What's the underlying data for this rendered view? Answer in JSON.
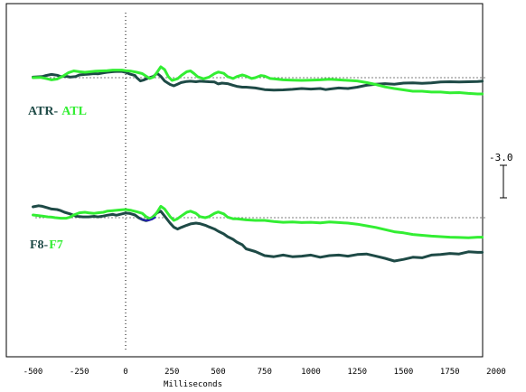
{
  "chart_data": {
    "type": "line",
    "xlabel": "Milliseconds",
    "x_ticks": [
      -500,
      -250,
      0,
      250,
      500,
      750,
      1000,
      1250,
      1500,
      1750,
      2000
    ],
    "xlim": [
      -500,
      1925
    ],
    "grid": false,
    "zero_line": {
      "x": 0,
      "style": "dotted"
    },
    "scale_bar": {
      "label": "-3.0"
    },
    "colors": {
      "dark": "#1e4a46",
      "bright": "#33ee33",
      "blue": "#2222aa"
    },
    "panels": [
      {
        "label_dark": "ATR-",
        "label_bright": "ATL",
        "series": [
          {
            "name": "ATR",
            "color": "#1e4a46",
            "x": [
              -500,
              -450,
              -430,
              -400,
              -370,
              -350,
              -320,
              -300,
              -270,
              -250,
              -220,
              -200,
              -170,
              -150,
              -120,
              -100,
              -70,
              -50,
              -20,
              0,
              20,
              50,
              60,
              80,
              100,
              120,
              150,
              170,
              190,
              210,
              240,
              260,
              280,
              300,
              330,
              350,
              380,
              400,
              430,
              450,
              480,
              500,
              520,
              550,
              580,
              600,
              630,
              650,
              700,
              750,
              800,
              850,
              900,
              950,
              1000,
              1050,
              1080,
              1100,
              1150,
              1200,
              1250,
              1300,
              1350,
              1400,
              1450,
              1500,
              1550,
              1600,
              1650,
              1700,
              1750,
              1800,
              1850,
              1900,
              1925
            ],
            "y": [
              0.2,
              0.4,
              0.8,
              1.2,
              0.9,
              0.4,
              0.5,
              0.2,
              0.4,
              1.0,
              1.2,
              1.3,
              1.5,
              1.4,
              1.8,
              2.0,
              2.2,
              2.3,
              2.3,
              2.0,
              1.4,
              0.8,
              0.0,
              -1.2,
              -0.8,
              -0.2,
              0.5,
              1.6,
              0.5,
              -1.2,
              -2.5,
              -3.0,
              -2.4,
              -1.8,
              -1.4,
              -1.3,
              -1.5,
              -1.3,
              -1.4,
              -1.5,
              -1.6,
              -2.3,
              -2.0,
              -2.2,
              -2.8,
              -3.2,
              -3.5,
              -3.5,
              -3.8,
              -4.4,
              -4.6,
              -4.5,
              -4.3,
              -4.0,
              -4.2,
              -4.0,
              -4.4,
              -4.2,
              -3.8,
              -4.0,
              -3.5,
              -2.8,
              -2.4,
              -2.2,
              -2.4,
              -2.0,
              -1.9,
              -2.1,
              -1.9,
              -1.6,
              -1.5,
              -1.6,
              -1.5,
              -1.4,
              -1.3
            ]
          },
          {
            "name": "ATL",
            "color": "#33ee33",
            "x": [
              -500,
              -460,
              -430,
              -400,
              -370,
              -340,
              -310,
              -280,
              -250,
              -220,
              -190,
              -160,
              -130,
              -100,
              -70,
              -40,
              -20,
              0,
              30,
              60,
              90,
              110,
              130,
              150,
              170,
              190,
              210,
              230,
              250,
              280,
              300,
              330,
              350,
              370,
              390,
              420,
              450,
              480,
              500,
              530,
              550,
              580,
              600,
              630,
              650,
              680,
              700,
              730,
              750,
              780,
              800,
              850,
              900,
              950,
              1000,
              1050,
              1100,
              1150,
              1200,
              1250,
              1300,
              1350,
              1400,
              1450,
              1500,
              1550,
              1600,
              1650,
              1700,
              1750,
              1800,
              1850,
              1900,
              1925
            ],
            "y": [
              0.0,
              0.1,
              -0.3,
              -0.8,
              -0.5,
              0.5,
              1.8,
              2.5,
              2.2,
              2.0,
              2.2,
              2.4,
              2.5,
              2.6,
              2.8,
              2.8,
              2.8,
              2.6,
              2.4,
              2.0,
              1.5,
              0.6,
              -0.3,
              0.2,
              2.0,
              4.0,
              3.0,
              0.4,
              -1.0,
              -0.4,
              0.8,
              2.2,
              2.5,
              1.5,
              0.3,
              -0.4,
              0.2,
              1.5,
              2.1,
              1.6,
              0.4,
              -0.3,
              0.4,
              1.0,
              0.6,
              -0.3,
              0.0,
              0.8,
              0.6,
              -0.3,
              -0.4,
              -0.8,
              -0.9,
              -1.0,
              -0.9,
              -0.8,
              -0.6,
              -0.8,
              -1.0,
              -1.2,
              -1.8,
              -2.5,
              -3.4,
              -4.0,
              -4.5,
              -5.0,
              -5.0,
              -5.3,
              -5.3,
              -5.6,
              -5.5,
              -5.8,
              -6.0,
              -6.0
            ]
          }
        ]
      },
      {
        "label_dark": "F8-",
        "label_bright": "F7",
        "series": [
          {
            "name": "F8",
            "color": "#1e4a46",
            "x": [
              -500,
              -470,
              -450,
              -420,
              -400,
              -370,
              -350,
              -330,
              -300,
              -270,
              -250,
              -230,
              -200,
              -170,
              -150,
              -120,
              -100,
              -70,
              -50,
              -20,
              0,
              20,
              50,
              70,
              90,
              110,
              130,
              150,
              170,
              190,
              210,
              240,
              260,
              280,
              300,
              330,
              350,
              380,
              400,
              430,
              450,
              480,
              500,
              530,
              550,
              580,
              600,
              630,
              650,
              700,
              750,
              800,
              850,
              900,
              950,
              1000,
              1050,
              1100,
              1150,
              1200,
              1250,
              1300,
              1350,
              1400,
              1450,
              1500,
              1550,
              1600,
              1650,
              1700,
              1750,
              1800,
              1850,
              1900,
              1925
            ],
            "y": [
              4.0,
              4.4,
              4.2,
              3.6,
              3.2,
              3.0,
              2.6,
              2.0,
              1.4,
              0.6,
              0.4,
              0.3,
              0.3,
              0.5,
              0.3,
              0.6,
              0.9,
              1.2,
              0.9,
              1.4,
              1.7,
              1.6,
              1.0,
              0.0,
              -0.7,
              -1.1,
              -0.6,
              0.5,
              1.8,
              2.4,
              0.6,
              -2.0,
              -3.5,
              -4.2,
              -3.6,
              -2.8,
              -2.3,
              -2.0,
              -2.2,
              -2.8,
              -3.4,
              -4.2,
              -5.0,
              -6.0,
              -7.0,
              -8.0,
              -9.0,
              -10.0,
              -11.5,
              -12.5,
              -14.0,
              -14.4,
              -13.8,
              -14.4,
              -14.2,
              -13.8,
              -14.6,
              -14.0,
              -13.8,
              -14.2,
              -13.6,
              -13.4,
              -14.2,
              -15.0,
              -16.0,
              -15.4,
              -14.6,
              -14.8,
              -13.8,
              -13.6,
              -13.2,
              -13.4,
              -12.6,
              -12.8,
              -12.8
            ]
          },
          {
            "name": "F7",
            "color": "#33ee33",
            "x": [
              -500,
              -450,
              -420,
              -400,
              -380,
              -350,
              -320,
              -300,
              -280,
              -250,
              -220,
              -200,
              -170,
              -150,
              -120,
              -100,
              -70,
              -40,
              -20,
              0,
              30,
              60,
              90,
              110,
              130,
              150,
              170,
              190,
              210,
              240,
              260,
              280,
              300,
              330,
              350,
              380,
              400,
              430,
              450,
              480,
              500,
              530,
              550,
              580,
              600,
              650,
              700,
              750,
              800,
              850,
              900,
              950,
              1000,
              1050,
              1100,
              1150,
              1200,
              1250,
              1300,
              1350,
              1400,
              1450,
              1500,
              1550,
              1600,
              1650,
              1700,
              1750,
              1800,
              1850,
              1900,
              1925
            ],
            "y": [
              1.0,
              0.6,
              0.3,
              0.2,
              0.0,
              -0.2,
              -0.2,
              0.2,
              1.0,
              1.8,
              2.0,
              1.8,
              1.6,
              1.8,
              2.0,
              2.4,
              2.6,
              2.8,
              2.9,
              3.0,
              2.7,
              2.2,
              1.6,
              0.4,
              -0.3,
              0.3,
              2.0,
              4.2,
              3.2,
              0.4,
              -1.0,
              -0.4,
              0.6,
              2.0,
              2.4,
              1.6,
              0.4,
              0.0,
              0.4,
              1.6,
              2.1,
              1.4,
              0.2,
              -0.4,
              -0.4,
              -0.8,
              -1.0,
              -1.0,
              -1.4,
              -1.7,
              -1.6,
              -1.8,
              -1.7,
              -1.9,
              -1.6,
              -1.8,
              -2.0,
              -2.4,
              -3.0,
              -3.6,
              -4.4,
              -5.2,
              -5.6,
              -6.2,
              -6.5,
              -6.8,
              -7.0,
              -7.2,
              -7.3,
              -7.4,
              -7.2,
              -7.2
            ]
          },
          {
            "name": "F8 segment",
            "color": "#2222aa",
            "x": [
              80,
              100,
              120,
              140,
              160
            ],
            "y": [
              -0.4,
              -0.9,
              -1.1,
              -0.7,
              0.1
            ]
          }
        ]
      }
    ]
  }
}
